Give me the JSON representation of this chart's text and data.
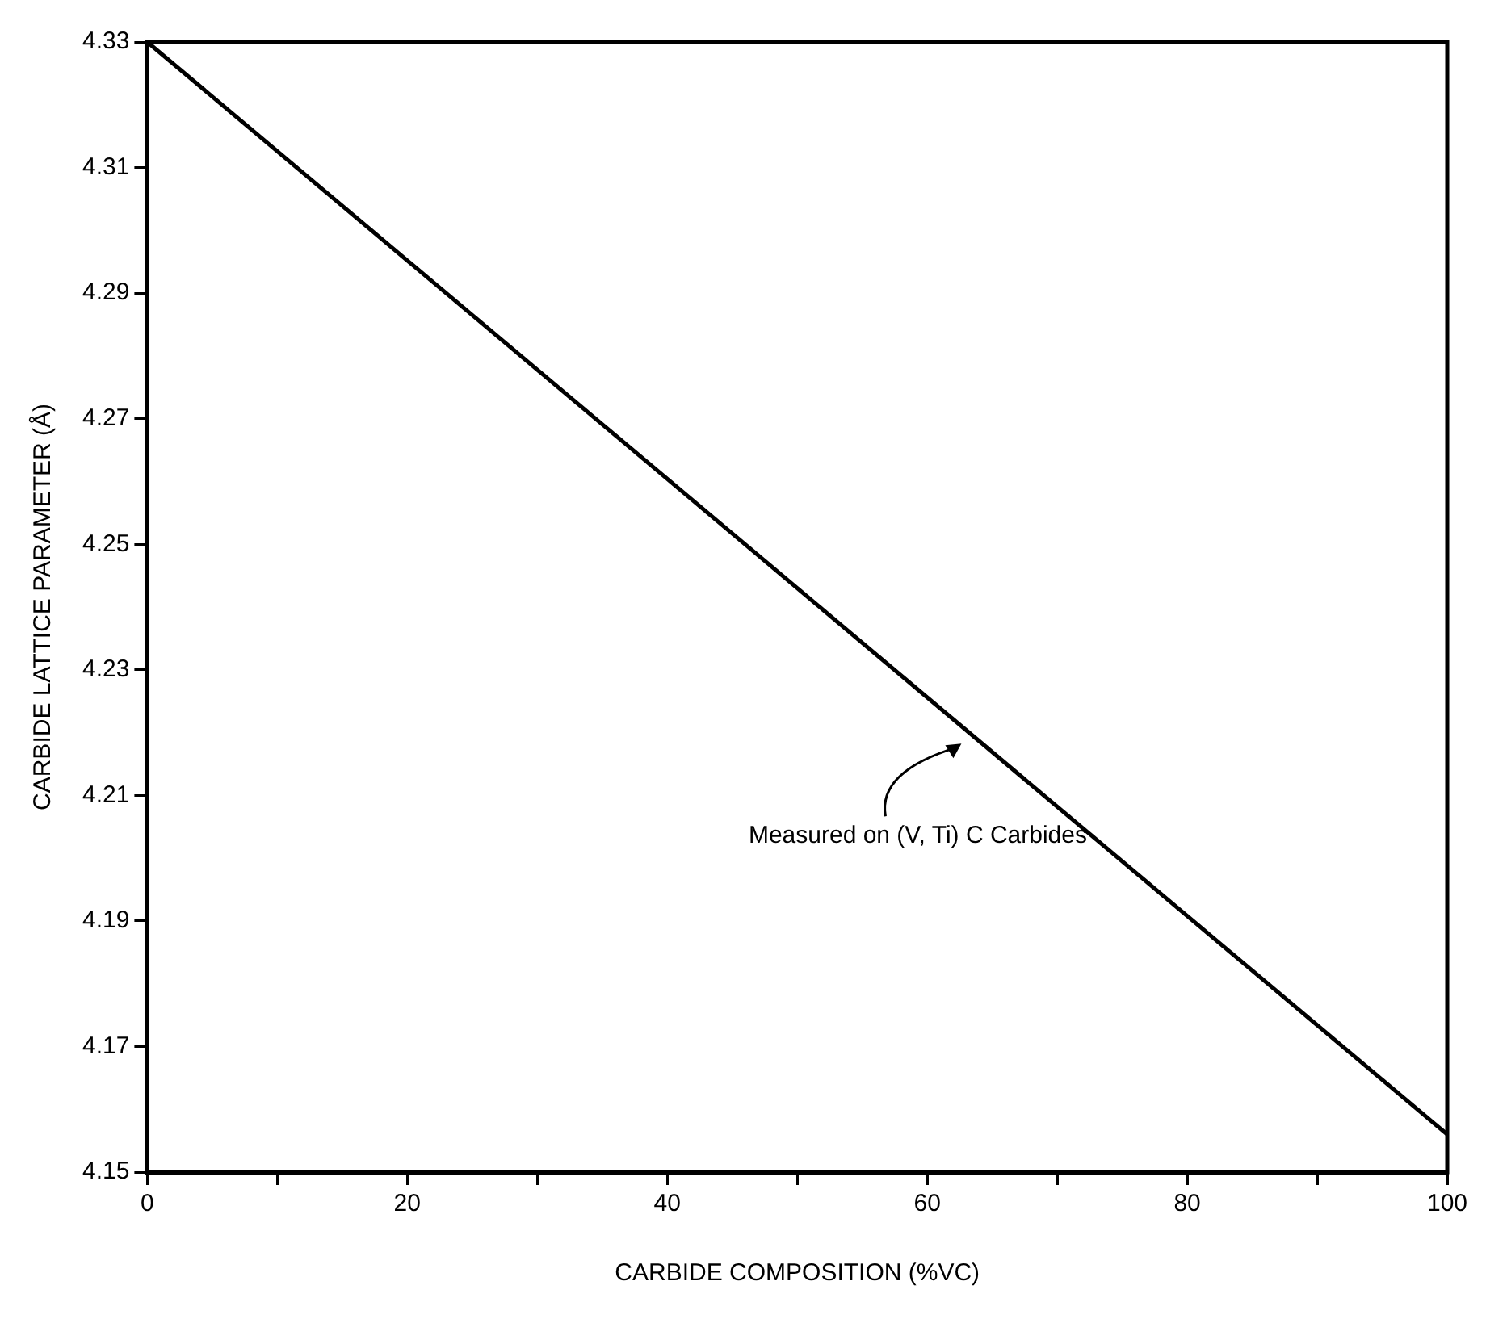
{
  "chart_data": {
    "type": "line",
    "xlabel": "CARBIDE COMPOSITION (%VC)",
    "ylabel": "CARBIDE LATTICE PARAMETER (Å)",
    "x": [
      0,
      100
    ],
    "series": [
      {
        "color": "#000000",
        "values": [
          4.33,
          4.156
        ]
      }
    ],
    "xlim": [
      0,
      100
    ],
    "ylim": [
      4.15,
      4.33
    ],
    "xticks": [
      0,
      {
        "value": 10,
        "label": null
      },
      20,
      {
        "value": 30,
        "label": null
      },
      40,
      {
        "value": 50,
        "label": null
      },
      60,
      {
        "value": 70,
        "label": null
      },
      80,
      {
        "value": 90,
        "label": null
      },
      100
    ],
    "yticks": [
      4.15,
      4.17,
      4.19,
      4.21,
      4.23,
      4.25,
      4.27,
      4.29,
      4.31,
      4.33
    ],
    "annotations": [
      {
        "text": "Measured on (V, Ti) C Carbides",
        "x": 63,
        "y": 4.219
      }
    ],
    "grid": false,
    "legend": false,
    "marker": "none",
    "line_style": "solid"
  }
}
